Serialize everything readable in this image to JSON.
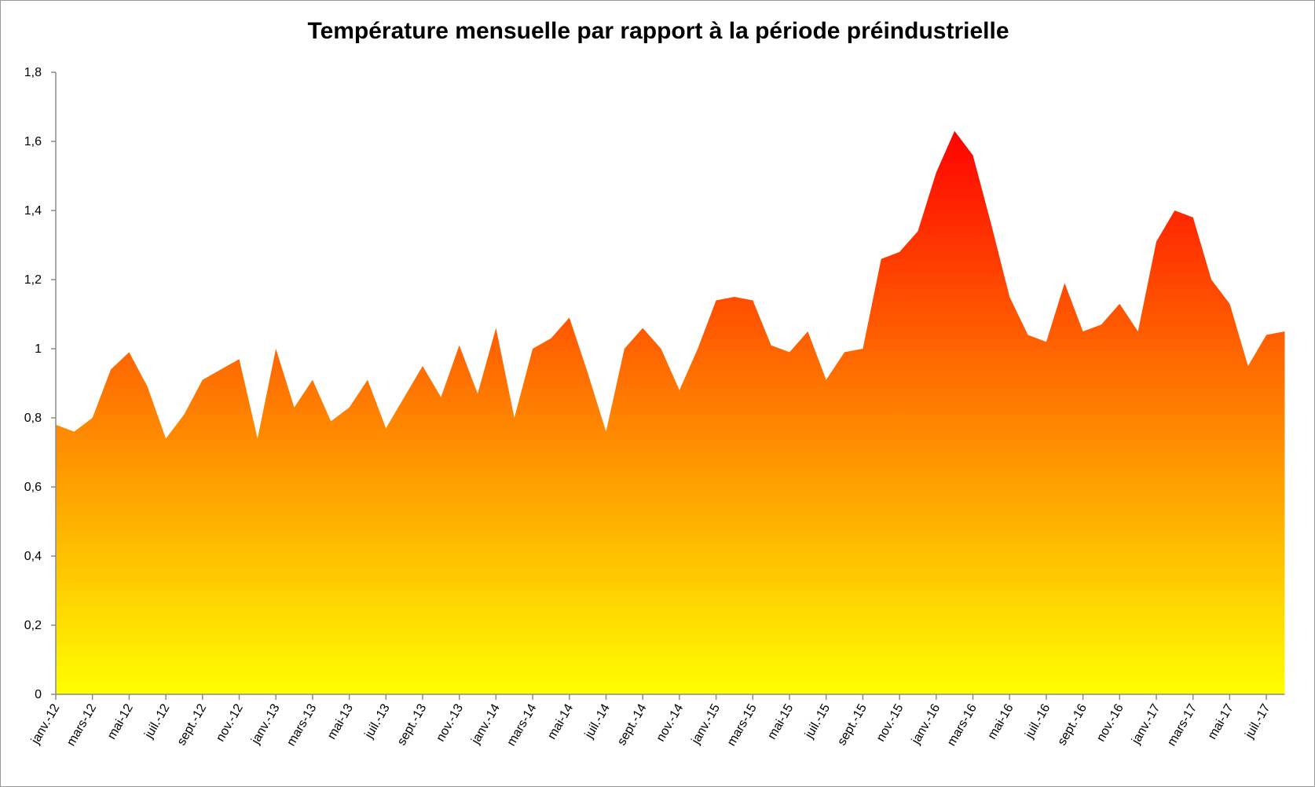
{
  "chart_data": {
    "type": "area",
    "title": "Température mensuelle par rapport à la période préindustrielle",
    "xlabel": "",
    "ylabel": "",
    "ylim": [
      0,
      1.8
    ],
    "y_ticks": [
      "0",
      "0,2",
      "0,4",
      "0,6",
      "0,8",
      "1",
      "1,2",
      "1,4",
      "1,6",
      "1,8"
    ],
    "grid": false,
    "legend": "none",
    "x_tick_labels": [
      "janv.-12",
      "mars-12",
      "mai-12",
      "juil.-12",
      "sept.-12",
      "nov.-12",
      "janv.-13",
      "mars-13",
      "mai-13",
      "juil.-13",
      "sept.-13",
      "nov.-13",
      "janv.-14",
      "mars-14",
      "mai-14",
      "juil.-14",
      "sept.-14",
      "nov.-14",
      "janv.-15",
      "mars-15",
      "mai-15",
      "juil.-15",
      "sept.-15",
      "nov.-15",
      "janv.-16",
      "mars-16",
      "mai-16",
      "juil.-16",
      "sept.-16",
      "nov.-16",
      "janv.-17",
      "mars-17",
      "mai-17",
      "juil.-17"
    ],
    "x": [
      "janv.-12",
      "févr.-12",
      "mars-12",
      "avr.-12",
      "mai-12",
      "juin-12",
      "juil.-12",
      "août-12",
      "sept.-12",
      "oct.-12",
      "nov.-12",
      "déc.-12",
      "janv.-13",
      "févr.-13",
      "mars-13",
      "avr.-13",
      "mai-13",
      "juin-13",
      "juil.-13",
      "août-13",
      "sept.-13",
      "oct.-13",
      "nov.-13",
      "déc.-13",
      "janv.-14",
      "févr.-14",
      "mars-14",
      "avr.-14",
      "mai-14",
      "juin-14",
      "juil.-14",
      "août-14",
      "sept.-14",
      "oct.-14",
      "nov.-14",
      "déc.-14",
      "janv.-15",
      "févr.-15",
      "mars-15",
      "avr.-15",
      "mai-15",
      "juin-15",
      "juil.-15",
      "août-15",
      "sept.-15",
      "oct.-15",
      "nov.-15",
      "déc.-15",
      "janv.-16",
      "févr.-16",
      "mars-16",
      "avr.-16",
      "mai-16",
      "juin-16",
      "juil.-16",
      "août-16",
      "sept.-16",
      "oct.-16",
      "nov.-16",
      "déc.-16",
      "janv.-17",
      "févr.-17",
      "mars-17",
      "avr.-17",
      "mai-17",
      "juin-17",
      "juil.-17",
      "août-17"
    ],
    "values": [
      0.78,
      0.76,
      0.8,
      0.94,
      0.99,
      0.89,
      0.74,
      0.81,
      0.91,
      0.94,
      0.97,
      0.74,
      1.0,
      0.83,
      0.91,
      0.79,
      0.83,
      0.91,
      0.77,
      0.86,
      0.95,
      0.86,
      1.01,
      0.87,
      1.06,
      0.8,
      1.0,
      1.03,
      1.09,
      0.93,
      0.76,
      1.0,
      1.06,
      1.0,
      0.88,
      1.0,
      1.14,
      1.15,
      1.14,
      1.01,
      0.99,
      1.05,
      0.91,
      0.99,
      1.0,
      1.26,
      1.28,
      1.34,
      1.51,
      1.63,
      1.56,
      1.36,
      1.15,
      1.04,
      1.02,
      1.19,
      1.05,
      1.07,
      1.13,
      1.05,
      1.31,
      1.4,
      1.38,
      1.2,
      1.13,
      0.95,
      1.04,
      1.05
    ],
    "colors": {
      "top": "#ff0000",
      "middle": "#ff8c00",
      "bottom": "#ffff00",
      "axis": "#8c8c8c"
    }
  }
}
